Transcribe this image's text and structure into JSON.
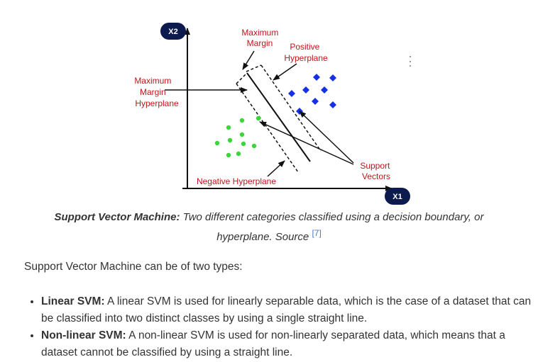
{
  "diagram": {
    "axis_x": "X1",
    "axis_y": "X2",
    "label_max_margin": [
      "Maximum",
      "Margin"
    ],
    "label_positive": [
      "Positive",
      "Hyperplane"
    ],
    "label_mm_hyperplane": [
      "Maximum",
      "Margin",
      "Hyperplane"
    ],
    "label_support": [
      "Support",
      "Vectors"
    ],
    "label_negative": "Negative Hyperplane",
    "colors": {
      "positive": "#1530e6",
      "negative": "#3ad63a",
      "label": "#c0141c",
      "pill": "#0c1a4d"
    }
  },
  "caption": {
    "bold": "Support Vector Machine:",
    "text": "Two different categories classified using a decision boundary, or hyperplane. Source",
    "ref": "[7]"
  },
  "intro": "Support Vector Machine can be of two types:",
  "types": [
    {
      "term": "Linear SVM:",
      "desc": "A linear SVM is used for linearly separable data, which is the case of a dataset that can be classified into two distinct classes by using a single straight line."
    },
    {
      "term": "Non-linear SVM:",
      "desc": "A non-linear SVM is used for non-linearly separated data, which means that a dataset cannot be classified by using a straight line."
    }
  ]
}
